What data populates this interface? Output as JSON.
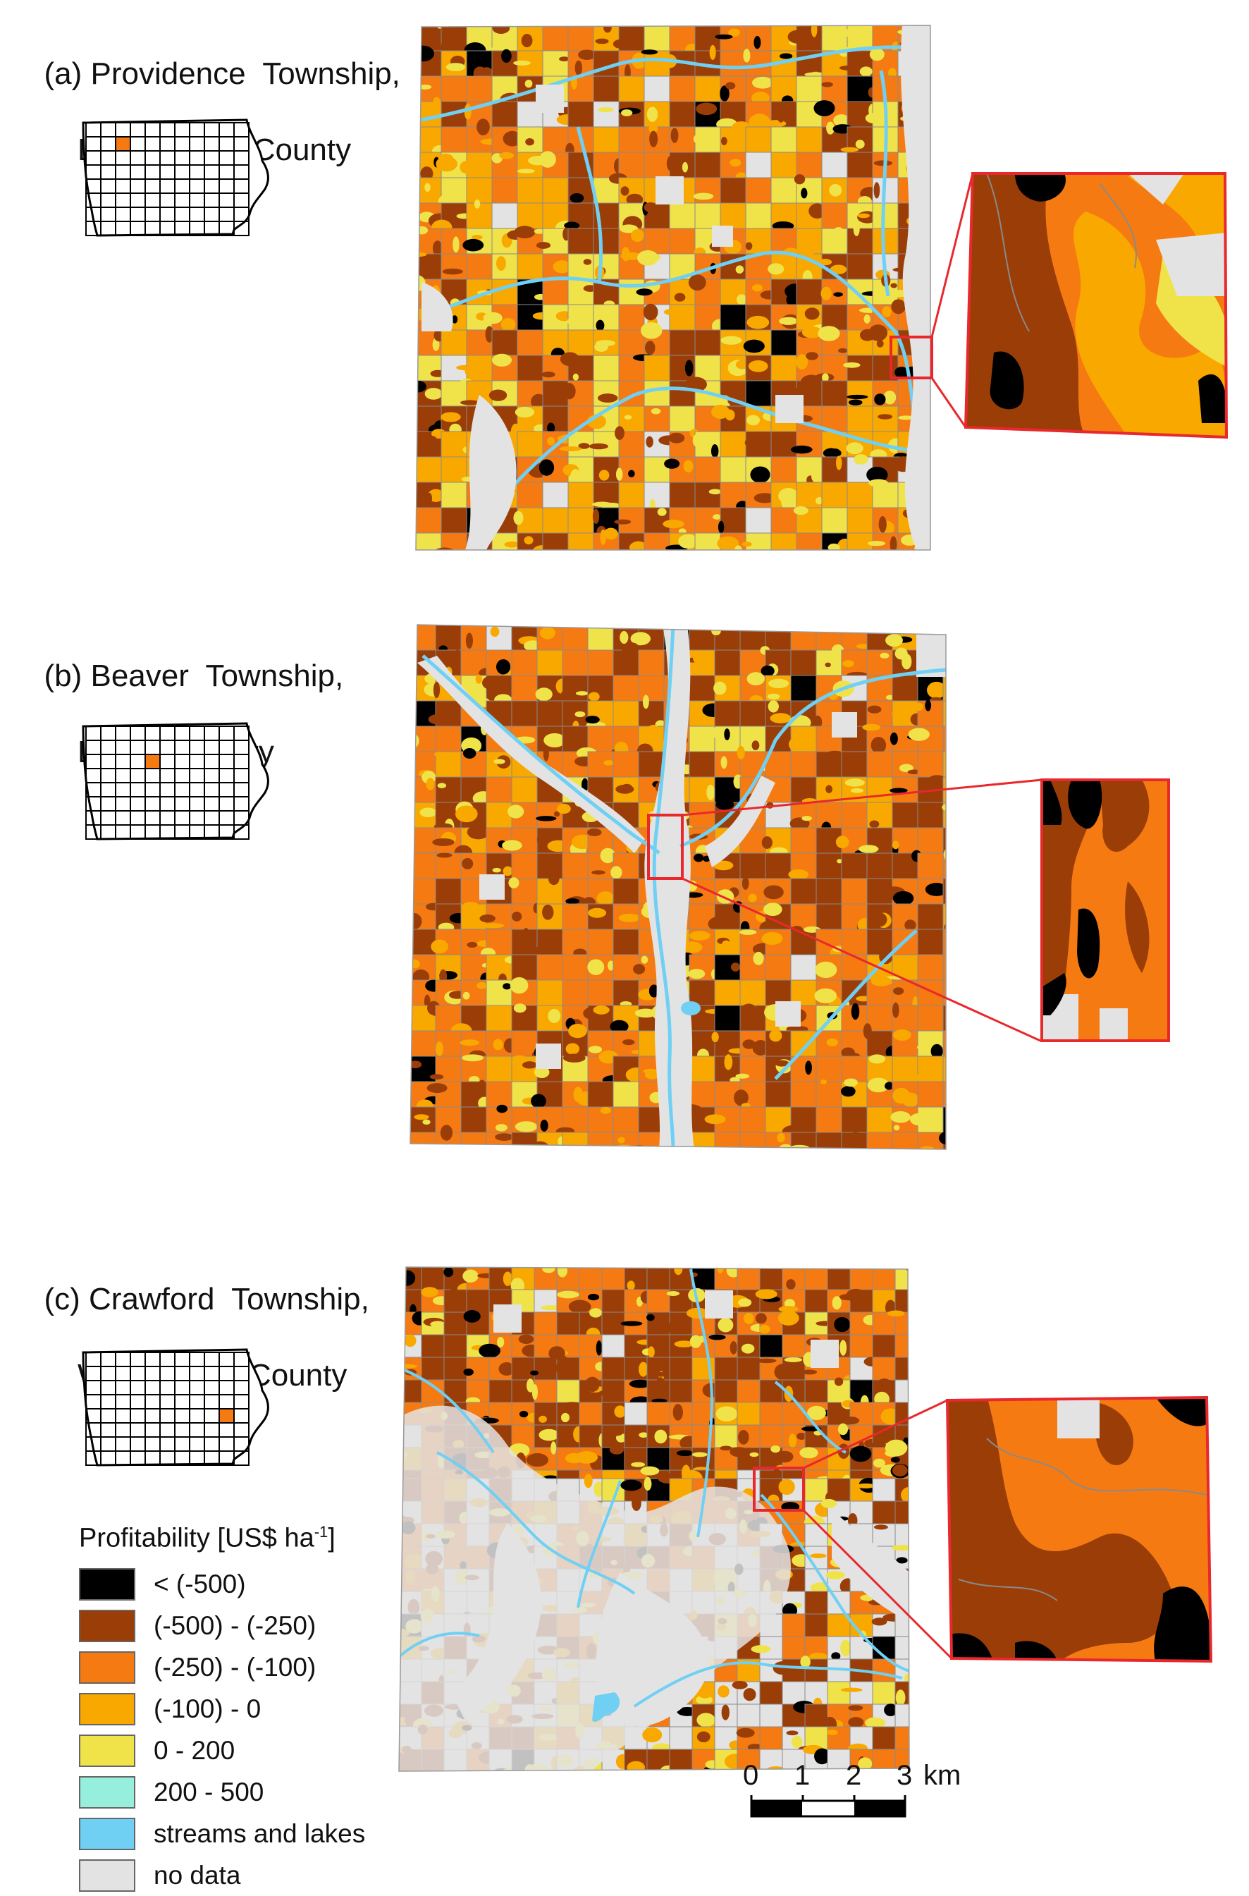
{
  "panels": [
    {
      "tag": "(a)",
      "name": "Providence  Township,",
      "county": "Buena Vista County"
    },
    {
      "tag": "(b)",
      "name": "Beaver  Township,",
      "county": "Boone County"
    },
    {
      "tag": "(c)",
      "name": "Crawford  Township,",
      "county": "Washington County"
    }
  ],
  "legend": {
    "title": "Profitability [US$ ha",
    "title_sup": "-1",
    "title_end": "]",
    "items": [
      {
        "label": "< (-500)",
        "color": "#000000"
      },
      {
        "label": "(-500) - (-250)",
        "color": "#9a3d07"
      },
      {
        "label": "(-250) - (-100)",
        "color": "#f57a12"
      },
      {
        "label": "(-100) - 0",
        "color": "#f9a800"
      },
      {
        "label": "0 - 200",
        "color": "#f0e34a"
      },
      {
        "label": "200 - 500",
        "color": "#96eedd"
      },
      {
        "label": "streams and lakes",
        "color": "#6fd0f4"
      },
      {
        "label": "no data",
        "color": "#e3e3e3"
      }
    ]
  },
  "scale_bar": {
    "ticks": [
      "0",
      "1",
      "2",
      "3"
    ],
    "unit": "km"
  }
}
